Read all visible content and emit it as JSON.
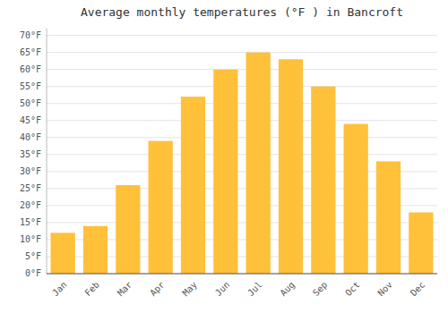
{
  "chart_data": {
    "type": "bar",
    "title": "Average monthly temperatures (°F ) in Bancroft",
    "categories": [
      "Jan",
      "Feb",
      "Mar",
      "Apr",
      "May",
      "Jun",
      "Jul",
      "Aug",
      "Sep",
      "Oct",
      "Nov",
      "Dec"
    ],
    "values": [
      12,
      14,
      26,
      39,
      52,
      60,
      65,
      63,
      55,
      44,
      33,
      18
    ],
    "color": "#FFC03A",
    "ylim": [
      0,
      72
    ],
    "yticks": [
      {
        "value": 0,
        "label": "0°F"
      },
      {
        "value": 5,
        "label": "5°F"
      },
      {
        "value": 10,
        "label": "10°F"
      },
      {
        "value": 15,
        "label": "15°F"
      },
      {
        "value": 20,
        "label": "20°F"
      },
      {
        "value": 25,
        "label": "25°F"
      },
      {
        "value": 30,
        "label": "30°F"
      },
      {
        "value": 35,
        "label": "35°F"
      },
      {
        "value": 40,
        "label": "40°F"
      },
      {
        "value": 45,
        "label": "45°F"
      },
      {
        "value": 50,
        "label": "50°F"
      },
      {
        "value": 55,
        "label": "55°F"
      },
      {
        "value": 60,
        "label": "60°F"
      },
      {
        "value": 65,
        "label": "65°F"
      },
      {
        "value": 70,
        "label": "70°F"
      }
    ],
    "grid": true
  }
}
